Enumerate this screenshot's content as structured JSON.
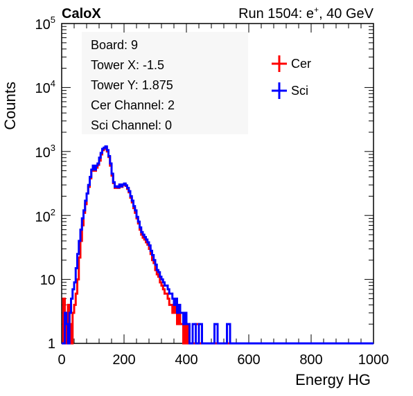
{
  "header": {
    "left": "CaloX",
    "right_prefix": "Run 1504: e",
    "right_sup": "+",
    "right_suffix": ", 40 GeV"
  },
  "info_box": {
    "lines": [
      "Board: 9",
      "Tower X: -1.5",
      "Tower Y: 1.875",
      "Cer Channel: 2",
      "Sci Channel: 0"
    ]
  },
  "chart_data": {
    "type": "line",
    "title": "",
    "xlabel": "Energy HG",
    "ylabel": "Counts",
    "xlim": [
      0,
      1000
    ],
    "ylim": [
      1,
      100000
    ],
    "yscale": "log",
    "grid": false,
    "legend_position": "top-right",
    "x_ticks": [
      "0",
      "200",
      "400",
      "600",
      "800",
      "1000"
    ],
    "y_ticks": [
      {
        "base": "1",
        "exp": ""
      },
      {
        "base": "10",
        "exp": ""
      },
      {
        "base": "10",
        "exp": "2"
      },
      {
        "base": "10",
        "exp": "3"
      },
      {
        "base": "10",
        "exp": "4"
      },
      {
        "base": "10",
        "exp": "5"
      }
    ],
    "series": [
      {
        "name": "Cer",
        "color": "#ff0000",
        "points": [
          [
            0,
            1
          ],
          [
            5,
            5
          ],
          [
            10,
            3
          ],
          [
            15,
            1
          ],
          [
            20,
            4
          ],
          [
            25,
            2
          ],
          [
            30,
            1
          ],
          [
            35,
            3
          ],
          [
            40,
            4
          ],
          [
            45,
            6
          ],
          [
            50,
            10
          ],
          [
            55,
            22
          ],
          [
            60,
            40
          ],
          [
            65,
            70
          ],
          [
            70,
            110
          ],
          [
            75,
            150
          ],
          [
            80,
            220
          ],
          [
            85,
            280
          ],
          [
            90,
            380
          ],
          [
            95,
            500
          ],
          [
            100,
            560
          ],
          [
            105,
            500
          ],
          [
            110,
            560
          ],
          [
            115,
            620
          ],
          [
            120,
            720
          ],
          [
            125,
            900
          ],
          [
            130,
            1050
          ],
          [
            135,
            1100
          ],
          [
            140,
            1150
          ],
          [
            145,
            1000
          ],
          [
            150,
            820
          ],
          [
            155,
            600
          ],
          [
            160,
            420
          ],
          [
            165,
            320
          ],
          [
            170,
            270
          ],
          [
            175,
            280
          ],
          [
            180,
            270
          ],
          [
            185,
            300
          ],
          [
            190,
            280
          ],
          [
            195,
            300
          ],
          [
            200,
            310
          ],
          [
            205,
            290
          ],
          [
            210,
            260
          ],
          [
            215,
            230
          ],
          [
            220,
            190
          ],
          [
            225,
            160
          ],
          [
            230,
            130
          ],
          [
            235,
            110
          ],
          [
            240,
            90
          ],
          [
            245,
            75
          ],
          [
            250,
            60
          ],
          [
            255,
            50
          ],
          [
            260,
            45
          ],
          [
            265,
            42
          ],
          [
            270,
            38
          ],
          [
            275,
            35
          ],
          [
            280,
            30
          ],
          [
            285,
            25
          ],
          [
            290,
            20
          ],
          [
            295,
            18
          ],
          [
            300,
            14
          ],
          [
            305,
            12
          ],
          [
            310,
            11
          ],
          [
            315,
            9
          ],
          [
            320,
            8
          ],
          [
            325,
            7
          ],
          [
            330,
            6
          ],
          [
            335,
            6
          ],
          [
            340,
            5
          ],
          [
            345,
            4
          ],
          [
            350,
            4
          ],
          [
            355,
            3
          ],
          [
            360,
            4
          ],
          [
            365,
            3
          ],
          [
            370,
            2
          ],
          [
            375,
            3
          ],
          [
            380,
            2
          ],
          [
            385,
            2
          ],
          [
            390,
            1
          ],
          [
            395,
            2
          ],
          [
            400,
            1
          ],
          [
            405,
            2
          ],
          [
            410,
            1
          ],
          [
            420,
            1
          ],
          [
            430,
            2
          ],
          [
            440,
            1
          ],
          [
            450,
            1
          ],
          [
            1000,
            1
          ]
        ]
      },
      {
        "name": "Sci",
        "color": "#0000ff",
        "points": [
          [
            0,
            1
          ],
          [
            5,
            1
          ],
          [
            10,
            3
          ],
          [
            15,
            2
          ],
          [
            20,
            1
          ],
          [
            25,
            3
          ],
          [
            30,
            5
          ],
          [
            35,
            7
          ],
          [
            40,
            9
          ],
          [
            45,
            15
          ],
          [
            50,
            25
          ],
          [
            55,
            40
          ],
          [
            60,
            60
          ],
          [
            65,
            90
          ],
          [
            70,
            120
          ],
          [
            75,
            170
          ],
          [
            80,
            220
          ],
          [
            85,
            300
          ],
          [
            90,
            400
          ],
          [
            95,
            520
          ],
          [
            100,
            600
          ],
          [
            105,
            520
          ],
          [
            110,
            600
          ],
          [
            115,
            650
          ],
          [
            120,
            800
          ],
          [
            125,
            950
          ],
          [
            130,
            1100
          ],
          [
            135,
            1150
          ],
          [
            140,
            1200
          ],
          [
            145,
            1050
          ],
          [
            150,
            850
          ],
          [
            155,
            650
          ],
          [
            160,
            450
          ],
          [
            165,
            330
          ],
          [
            170,
            280
          ],
          [
            175,
            285
          ],
          [
            180,
            275
          ],
          [
            185,
            305
          ],
          [
            190,
            285
          ],
          [
            195,
            305
          ],
          [
            200,
            315
          ],
          [
            205,
            295
          ],
          [
            210,
            270
          ],
          [
            215,
            240
          ],
          [
            220,
            200
          ],
          [
            225,
            170
          ],
          [
            230,
            140
          ],
          [
            235,
            120
          ],
          [
            240,
            95
          ],
          [
            245,
            80
          ],
          [
            250,
            65
          ],
          [
            255,
            55
          ],
          [
            260,
            50
          ],
          [
            265,
            46
          ],
          [
            270,
            42
          ],
          [
            275,
            38
          ],
          [
            280,
            34
          ],
          [
            285,
            28
          ],
          [
            290,
            24
          ],
          [
            295,
            20
          ],
          [
            300,
            17
          ],
          [
            305,
            14
          ],
          [
            310,
            13
          ],
          [
            315,
            11
          ],
          [
            320,
            10
          ],
          [
            325,
            9
          ],
          [
            330,
            8
          ],
          [
            335,
            8
          ],
          [
            340,
            7
          ],
          [
            345,
            6
          ],
          [
            350,
            6
          ],
          [
            355,
            5
          ],
          [
            360,
            4
          ],
          [
            365,
            5
          ],
          [
            370,
            3
          ],
          [
            375,
            4
          ],
          [
            380,
            3
          ],
          [
            385,
            3
          ],
          [
            390,
            2
          ],
          [
            395,
            3
          ],
          [
            400,
            2
          ],
          [
            405,
            2
          ],
          [
            410,
            1
          ],
          [
            420,
            2
          ],
          [
            430,
            1
          ],
          [
            440,
            2
          ],
          [
            450,
            1
          ],
          [
            460,
            1
          ],
          [
            470,
            1
          ],
          [
            480,
            1
          ],
          [
            490,
            2
          ],
          [
            500,
            1
          ],
          [
            510,
            1
          ],
          [
            520,
            1
          ],
          [
            530,
            2
          ],
          [
            540,
            1
          ],
          [
            1000,
            1
          ]
        ]
      }
    ]
  }
}
